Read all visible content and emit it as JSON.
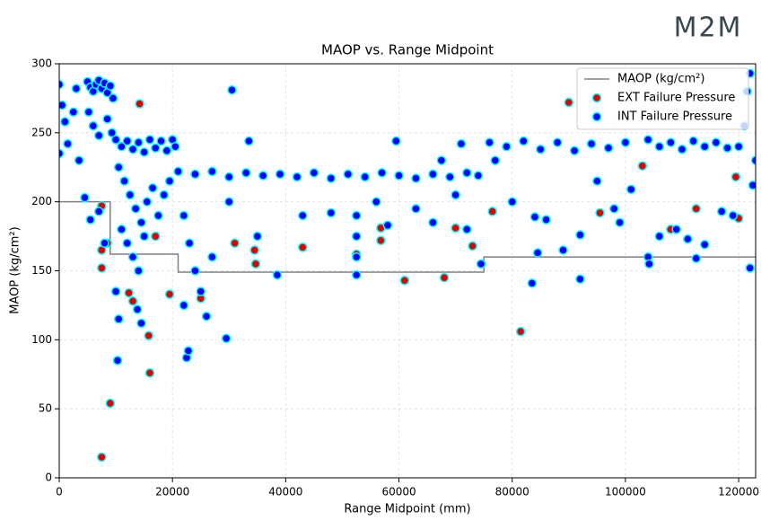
{
  "logo": "M2M",
  "chart_data": {
    "type": "scatter",
    "title": "MAOP vs. Range Midpoint",
    "x_label": "Range Midpoint (mm)",
    "y_label": "MAOP (kg/cm²)",
    "xlim": [
      0,
      123000
    ],
    "ylim": [
      0,
      300
    ],
    "xticks": [
      0,
      20000,
      40000,
      60000,
      80000,
      100000,
      120000
    ],
    "yticks": [
      0,
      50,
      100,
      150,
      200,
      250,
      300
    ],
    "grid": true,
    "legend": "upper right",
    "series": [
      {
        "name": "MAOP (kg/cm²)",
        "type": "line",
        "color": "#808080",
        "x": [
          0,
          9000,
          9000,
          21000,
          21000,
          75000,
          75000,
          123000
        ],
        "values": [
          200,
          200,
          162,
          162,
          149,
          149,
          160,
          160
        ]
      },
      {
        "name": "EXT Failure Pressure",
        "type": "scatter",
        "color": "#e00000",
        "edgecolor": "#00ffff",
        "x": [
          7500,
          9000,
          7500,
          7500,
          8500,
          14200,
          16000,
          15800,
          12300,
          13000,
          19500,
          17000,
          25000,
          31000,
          34500,
          34700,
          43000,
          52500,
          56800,
          56800,
          61000,
          68000,
          70000,
          73000,
          76500,
          81500,
          90000,
          95500,
          103000,
          108000,
          112500,
          119500,
          120000,
          7500
        ],
        "values": [
          15,
          54,
          165,
          152,
          170,
          271,
          76,
          103,
          134,
          128,
          133,
          175,
          130,
          170,
          165,
          155,
          167,
          162,
          181,
          172,
          143,
          145,
          181,
          168,
          193,
          106,
          272,
          192,
          226,
          180,
          195,
          218,
          188,
          197
        ]
      },
      {
        "name": "INT Failure Pressure",
        "type": "scatter",
        "color": "#0000ff",
        "edgecolor": "#00ffff",
        "x": [
          5000,
          5500,
          6000,
          6500,
          7000,
          7500,
          8000,
          8500,
          9000,
          9500,
          5200,
          6000,
          7000,
          8500,
          9300,
          10000,
          11000,
          12000,
          13000,
          14000,
          15000,
          16000,
          17000,
          18000,
          19000,
          20000,
          20500,
          10500,
          11500,
          12500,
          13500,
          14500,
          15500,
          16500,
          17500,
          18500,
          19500,
          11000,
          12000,
          13000,
          14000,
          15000,
          10000,
          10500,
          10300,
          14500,
          13800,
          21000,
          24000,
          27000,
          30000,
          33000,
          36000,
          39000,
          42000,
          45000,
          48000,
          51000,
          54000,
          57000,
          60000,
          63000,
          66000,
          69000,
          72000,
          74000,
          22000,
          23000,
          24000,
          25000,
          26000,
          22500,
          22800,
          29500,
          30500,
          22000,
          27000,
          30000,
          33500,
          35000,
          38500,
          43000,
          48000,
          52500,
          52500,
          52500,
          52500,
          56000,
          58000,
          59500,
          63000,
          66000,
          67500,
          70000,
          71000,
          72000,
          74500,
          76000,
          79000,
          82000,
          85000,
          88000,
          91000,
          94000,
          97000,
          100000,
          101000,
          77000,
          80000,
          84000,
          83500,
          84500,
          86000,
          89000,
          92000,
          92000,
          95000,
          99000,
          98000,
          104000,
          106000,
          108000,
          110000,
          112000,
          114000,
          116000,
          118000,
          104000,
          104200,
          106000,
          109000,
          111000,
          112500,
          114000,
          117000,
          119000,
          120000,
          121000,
          121500,
          122000,
          122000,
          122500,
          123000,
          0,
          0,
          500,
          1000,
          1500,
          2500,
          3000,
          3500,
          4500,
          5500,
          7000,
          8000
        ],
        "values": [
          287,
          283,
          280,
          285,
          288,
          282,
          286,
          279,
          284,
          275,
          265,
          255,
          248,
          260,
          250,
          245,
          240,
          244,
          238,
          243,
          236,
          245,
          239,
          244,
          237,
          245,
          240,
          225,
          215,
          205,
          195,
          185,
          200,
          210,
          190,
          205,
          215,
          180,
          170,
          160,
          150,
          175,
          135,
          115,
          85,
          112,
          122,
          222,
          220,
          222,
          218,
          221,
          219,
          220,
          218,
          221,
          217,
          220,
          218,
          221,
          219,
          217,
          220,
          218,
          221,
          219,
          190,
          170,
          150,
          135,
          117,
          87,
          92,
          101,
          281,
          125,
          160,
          200,
          244,
          175,
          147,
          190,
          192,
          147,
          160,
          175,
          190,
          200,
          183,
          244,
          195,
          185,
          230,
          205,
          242,
          180,
          155,
          243,
          240,
          244,
          238,
          243,
          237,
          242,
          239,
          243,
          209,
          230,
          200,
          189,
          141,
          163,
          187,
          165,
          144,
          176,
          215,
          185,
          195,
          245,
          240,
          243,
          238,
          244,
          240,
          243,
          239,
          160,
          155,
          175,
          180,
          173,
          159,
          169,
          193,
          190,
          240,
          255,
          280,
          293,
          152,
          212,
          230,
          285,
          235,
          270,
          258,
          242,
          265,
          282,
          230,
          203,
          187,
          193,
          170
        ]
      }
    ]
  }
}
